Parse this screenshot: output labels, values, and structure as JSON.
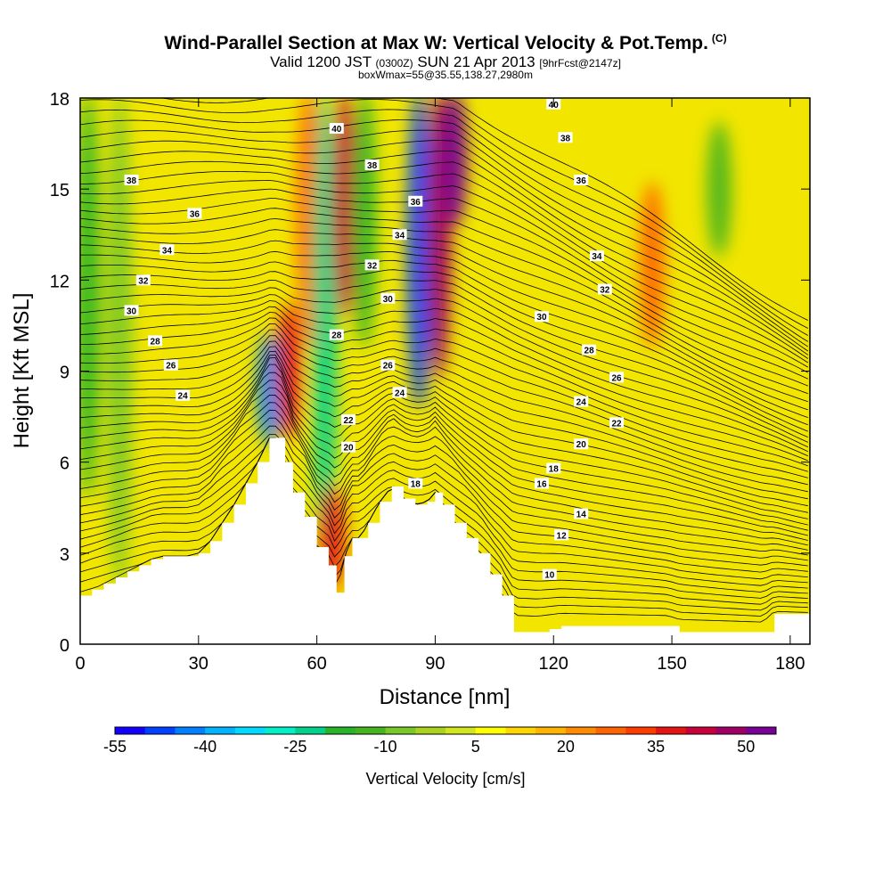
{
  "header": {
    "title": "Wind-Parallel Section at Max W: Vertical Velocity & Pot.Temp.",
    "copyright": "(C)",
    "valid_prefix": "Valid 1200 JST",
    "valid_utc": "(0300Z)",
    "valid_date": "SUN 21 Apr 2013",
    "forecast": "[9hrFcst@2147z]",
    "box_info": "boxWmax=55@35.55,138.27,2980m"
  },
  "colors": {
    "terrain": "#ffffff",
    "contour": "#000000",
    "colorbar": [
      "#1400ff",
      "#0040ff",
      "#0080ff",
      "#00b4ff",
      "#00dcff",
      "#00f0c8",
      "#00d28c",
      "#28b428",
      "#46b41e",
      "#78c828",
      "#aad21e",
      "#d2e61e",
      "#ffff00",
      "#ffd700",
      "#ffb400",
      "#ff8c00",
      "#ff6400",
      "#ff3c00",
      "#e61414",
      "#c8003c",
      "#a00064",
      "#780096"
    ]
  },
  "chart_data": {
    "type": "heatmap",
    "title": "Wind-Parallel Section at Max W: Vertical Velocity & Pot.Temp.",
    "xlabel": "Distance [nm]",
    "ylabel": "Height [Kft MSL]",
    "xlim": [
      0,
      185
    ],
    "ylim": [
      0,
      18
    ],
    "x_ticks": [
      0,
      30,
      60,
      90,
      120,
      150,
      180
    ],
    "y_ticks": [
      0,
      3,
      6,
      9,
      12,
      15,
      18
    ],
    "colorbar": {
      "label": "Vertical Velocity [cm/s]",
      "range": [
        -55,
        55
      ],
      "step": 5,
      "tick_values": [
        -55,
        -40,
        -25,
        -10,
        5,
        20,
        35,
        50
      ]
    },
    "terrain_profile": {
      "x": [
        0,
        3,
        6,
        9,
        12,
        15,
        18,
        21,
        24,
        27,
        30,
        33,
        36,
        39,
        42,
        45,
        48,
        50,
        52,
        54,
        57,
        60,
        63,
        65,
        67,
        69,
        71,
        73,
        76,
        79,
        82,
        85,
        88,
        90,
        92,
        95,
        98,
        101,
        104,
        107,
        110,
        113,
        116,
        119,
        122,
        125,
        128,
        131,
        134,
        137,
        140,
        143,
        146,
        149,
        152,
        155,
        158,
        161,
        164,
        167,
        170,
        173,
        176,
        179,
        182,
        185
      ],
      "height": [
        1.6,
        1.8,
        2.0,
        2.2,
        2.4,
        2.6,
        2.8,
        2.9,
        2.9,
        2.9,
        3.0,
        3.4,
        4.0,
        4.6,
        5.3,
        6.0,
        6.8,
        6.8,
        6.0,
        5.0,
        4.2,
        3.2,
        2.6,
        1.7,
        2.9,
        3.5,
        3.5,
        4.0,
        4.7,
        5.2,
        4.8,
        4.6,
        4.7,
        5.0,
        4.6,
        4.0,
        3.5,
        3.0,
        2.3,
        1.6,
        0.4,
        0.4,
        0.4,
        0.5,
        0.6,
        0.6,
        0.6,
        0.6,
        0.6,
        0.6,
        0.6,
        0.6,
        0.6,
        0.6,
        0.4,
        0.4,
        0.4,
        0.4,
        0.4,
        0.4,
        0.4,
        0.4,
        1.0,
        1.0,
        1.0,
        1.0
      ]
    },
    "vertical_velocity_features": [
      {
        "x": 2,
        "y_range": [
          5,
          18
        ],
        "w": -20
      },
      {
        "x": 10,
        "y_range": [
          2,
          18
        ],
        "w": -10
      },
      {
        "x": 48,
        "y_range": [
          6.8,
          10
        ],
        "w": -45
      },
      {
        "x": 53,
        "y_range": [
          7,
          11
        ],
        "w": 38
      },
      {
        "x": 58,
        "y_range": [
          10,
          18
        ],
        "w": 25
      },
      {
        "x": 62,
        "y_range": [
          3,
          18
        ],
        "w": -25
      },
      {
        "x": 64,
        "y_range": [
          2,
          5
        ],
        "w": 35
      },
      {
        "x": 67,
        "y_range": [
          11,
          18
        ],
        "w": 40
      },
      {
        "x": 72,
        "y_range": [
          10,
          18
        ],
        "w": -20
      },
      {
        "x": 86,
        "y_range": [
          8,
          18
        ],
        "w": -50
      },
      {
        "x": 91,
        "y_range": [
          9,
          18
        ],
        "w": 45
      },
      {
        "x": 95,
        "y_range": [
          14,
          18
        ],
        "w": 55
      },
      {
        "x": 145,
        "y_range": [
          10,
          15
        ],
        "w": 25
      },
      {
        "x": 162,
        "y_range": [
          13,
          17
        ],
        "w": -15
      }
    ],
    "potential_temperature_contours": [
      10,
      12,
      14,
      16,
      18,
      20,
      22,
      24,
      26,
      28,
      30,
      32,
      34,
      36,
      38,
      40
    ],
    "contour_labels": [
      {
        "text": "38",
        "x": 13,
        "y": 15.3
      },
      {
        "text": "36",
        "x": 29,
        "y": 14.2
      },
      {
        "text": "34",
        "x": 22,
        "y": 13.0
      },
      {
        "text": "32",
        "x": 16,
        "y": 12.0
      },
      {
        "text": "30",
        "x": 13,
        "y": 11.0
      },
      {
        "text": "28",
        "x": 19,
        "y": 10.0
      },
      {
        "text": "26",
        "x": 23,
        "y": 9.2
      },
      {
        "text": "24",
        "x": 26,
        "y": 8.2
      },
      {
        "text": "40",
        "x": 65,
        "y": 17.0
      },
      {
        "text": "38",
        "x": 74,
        "y": 15.8
      },
      {
        "text": "36",
        "x": 85,
        "y": 14.6
      },
      {
        "text": "34",
        "x": 81,
        "y": 13.5
      },
      {
        "text": "32",
        "x": 74,
        "y": 12.5
      },
      {
        "text": "30",
        "x": 78,
        "y": 11.4
      },
      {
        "text": "28",
        "x": 65,
        "y": 10.2
      },
      {
        "text": "26",
        "x": 78,
        "y": 9.2
      },
      {
        "text": "24",
        "x": 81,
        "y": 8.3
      },
      {
        "text": "22",
        "x": 68,
        "y": 7.4
      },
      {
        "text": "20",
        "x": 68,
        "y": 6.5
      },
      {
        "text": "18",
        "x": 85,
        "y": 5.3
      },
      {
        "text": "40",
        "x": 120,
        "y": 17.8
      },
      {
        "text": "38",
        "x": 123,
        "y": 16.7
      },
      {
        "text": "36",
        "x": 127,
        "y": 15.3
      },
      {
        "text": "34",
        "x": 131,
        "y": 12.8
      },
      {
        "text": "32",
        "x": 133,
        "y": 11.7
      },
      {
        "text": "30",
        "x": 117,
        "y": 10.8
      },
      {
        "text": "28",
        "x": 129,
        "y": 9.7
      },
      {
        "text": "26",
        "x": 136,
        "y": 8.8
      },
      {
        "text": "24",
        "x": 127,
        "y": 8.0
      },
      {
        "text": "22",
        "x": 136,
        "y": 7.3
      },
      {
        "text": "20",
        "x": 127,
        "y": 6.6
      },
      {
        "text": "18",
        "x": 120,
        "y": 5.8
      },
      {
        "text": "16",
        "x": 117,
        "y": 5.3
      },
      {
        "text": "14",
        "x": 127,
        "y": 4.3
      },
      {
        "text": "12",
        "x": 122,
        "y": 3.6
      },
      {
        "text": "10",
        "x": 119,
        "y": 2.3
      }
    ]
  }
}
